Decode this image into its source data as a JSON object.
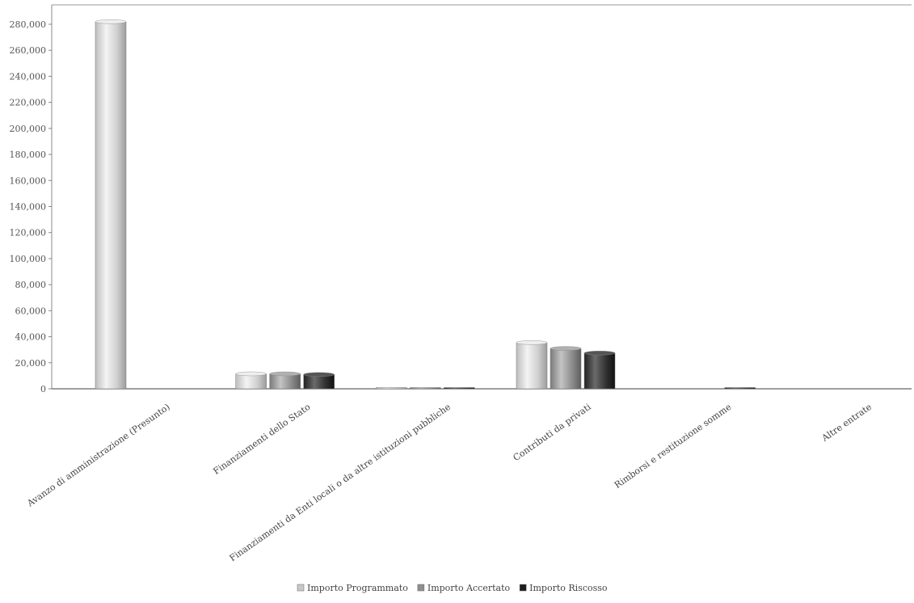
{
  "chart_data": {
    "type": "bar",
    "title": "",
    "xlabel": "",
    "ylabel": "",
    "ylim": [
      0,
      280000
    ],
    "yticks": [
      0,
      20000,
      40000,
      60000,
      80000,
      100000,
      120000,
      140000,
      160000,
      180000,
      200000,
      220000,
      240000,
      260000,
      280000
    ],
    "ytick_labels": [
      "0",
      "20,000",
      "40,000",
      "60,000",
      "80,000",
      "100,000",
      "120,000",
      "140,000",
      "160,000",
      "180,000",
      "200,000",
      "220,000",
      "240,000",
      "260,000",
      "280,000"
    ],
    "categories": [
      "Avanzo di amministrazione (Presunto)",
      "Finanziamenti dello Stato",
      "Finanziamenti da Enti locali o da altre istituzioni pubbliche",
      "Contributi da privati",
      "Rimborsi e restituzione somme",
      "Altre entrate"
    ],
    "series": [
      {
        "name": "Importo Programmato",
        "color": "#d9d9d9",
        "values": [
          282000,
          11500,
          500,
          35500,
          0,
          0
        ]
      },
      {
        "name": "Importo Accertato",
        "color": "#9a9a9a",
        "values": [
          0,
          11500,
          500,
          31000,
          0,
          0
        ]
      },
      {
        "name": "Importo Riscosso",
        "color": "#3a3a3a",
        "values": [
          0,
          11000,
          800,
          27500,
          600,
          0
        ]
      }
    ],
    "grid": false,
    "legend_position": "bottom"
  }
}
